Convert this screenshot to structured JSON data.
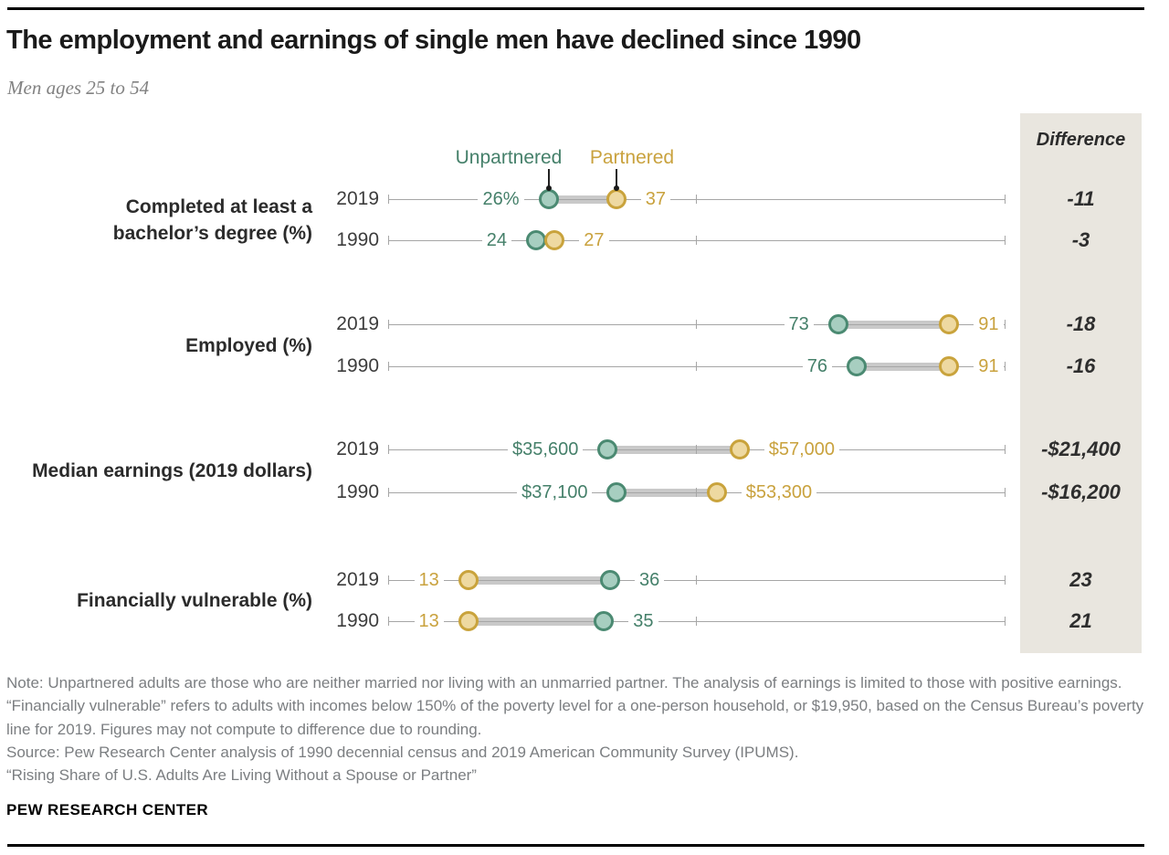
{
  "title": "The employment and earnings of single men have declined since 1990",
  "subtitle": "Men ages 25 to 54",
  "legend": {
    "unpartnered": "Unpartnered",
    "partnered": "Partnered"
  },
  "difference_header": "Difference",
  "colors": {
    "unpartnered_fill": "#a7cec0",
    "unpartnered_stroke": "#4b8a72",
    "unpartnered_text": "#45806a",
    "partnered_fill": "#eed9a1",
    "partnered_stroke": "#c9a33c",
    "partnered_text": "#c9a23e",
    "axis": "#a6a6a6",
    "connector_bar": "#c9c9c9",
    "panel_bg": "#e9e6df",
    "difference_text": "#2e2e2e",
    "year_text": "#3d3d3d",
    "category_text": "#2b2b2b"
  },
  "chart_data": {
    "type": "dumbbell",
    "title": "The employment and earnings of single men have declined since 1990",
    "subtitle": "Men ages 25 to 54",
    "series_names": [
      "Unpartnered",
      "Partnered"
    ],
    "legend_position": "top, pointing to first row dots",
    "percent_axis": {
      "min": 0,
      "max": 100,
      "ticks": [
        0,
        50,
        100
      ],
      "grid": false
    },
    "dollar_axis": {
      "min": 0,
      "max": 100000,
      "note": "dollar rows share the same pixel span as 0-100%"
    },
    "groups": [
      {
        "label": "Completed at least a bachelor’s degree (%)",
        "label_lines": [
          "Completed at least a",
          "bachelor’s degree (%)"
        ],
        "scale": "percent",
        "rows": [
          {
            "year": "2019",
            "unpartnered": 26,
            "partnered": 37,
            "unpartnered_label": "26%",
            "partnered_label": "37",
            "difference": "-11"
          },
          {
            "year": "1990",
            "unpartnered": 24,
            "partnered": 27,
            "unpartnered_label": "24",
            "partnered_label": "27",
            "difference": "-3"
          }
        ]
      },
      {
        "label": "Employed (%)",
        "label_lines": [
          "Employed (%)"
        ],
        "scale": "percent",
        "rows": [
          {
            "year": "2019",
            "unpartnered": 73,
            "partnered": 91,
            "unpartnered_label": "73",
            "partnered_label": "91",
            "difference": "-18"
          },
          {
            "year": "1990",
            "unpartnered": 76,
            "partnered": 91,
            "unpartnered_label": "76",
            "partnered_label": "91",
            "difference": "-16"
          }
        ]
      },
      {
        "label": "Median earnings (2019 dollars)",
        "label_lines": [
          "Median earnings (2019 dollars)"
        ],
        "scale": "dollars",
        "rows": [
          {
            "year": "2019",
            "unpartnered": 35600,
            "partnered": 57000,
            "unpartnered_label": "$35,600",
            "partnered_label": "$57,000",
            "difference": "-$21,400"
          },
          {
            "year": "1990",
            "unpartnered": 37100,
            "partnered": 53300,
            "unpartnered_label": "$37,100",
            "partnered_label": "$53,300",
            "difference": "-$16,200"
          }
        ]
      },
      {
        "label": "Financially vulnerable (%)",
        "label_lines": [
          "Financially vulnerable (%)"
        ],
        "scale": "percent",
        "rows": [
          {
            "year": "2019",
            "unpartnered": 36,
            "partnered": 13,
            "unpartnered_label": "36",
            "partnered_label": "13",
            "difference": "23"
          },
          {
            "year": "1990",
            "unpartnered": 35,
            "partnered": 13,
            "unpartnered_label": "35",
            "partnered_label": "13",
            "difference": "21"
          }
        ]
      }
    ]
  },
  "notes": {
    "note": "Note: Unpartnered adults are those who are neither married nor living with an unmarried partner. The analysis of earnings is limited to those with positive earnings. “Financially vulnerable” refers to adults with incomes below 150% of the poverty level for a one-person household, or $19,950, based on the Census Bureau’s poverty line for 2019. Figures may not compute to difference due to rounding.",
    "source": "Source: Pew Research Center analysis of 1990 decennial census and 2019 American Community Survey (IPUMS).",
    "report": "“Rising Share of U.S. Adults Are Living Without a Spouse or Partner”",
    "brand": "PEW RESEARCH CENTER"
  }
}
